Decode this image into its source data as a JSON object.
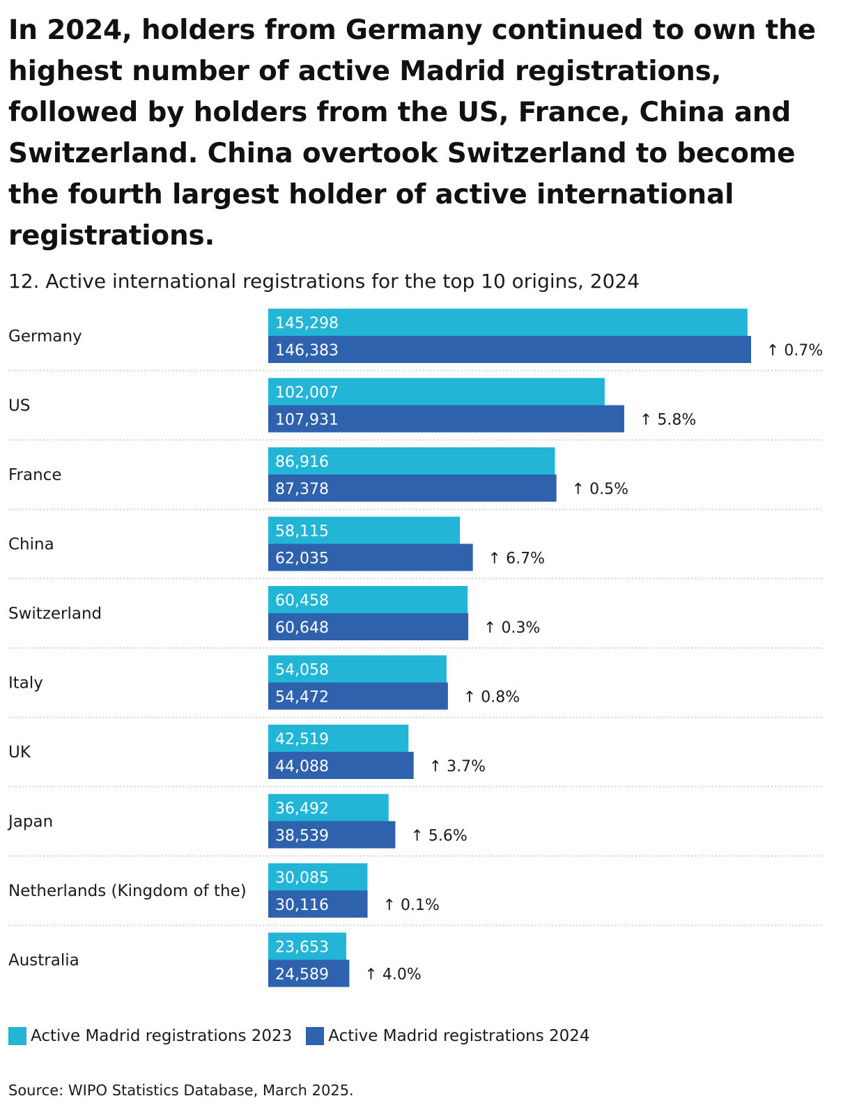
{
  "headline": "In 2024, holders from Germany continued to own the highest number of active Madrid registrations, followed by holders from the US, France, China and Switzerland. China overtook Switzerland to become the fourth largest holder of active international registrations.",
  "source": "Source: WIPO Statistics Database, March 2025.",
  "colors": {
    "series_2023": "#23b5d6",
    "series_2024": "#2f62ad",
    "divider": "#c8c8c8"
  },
  "chart_data": {
    "type": "bar",
    "orientation": "horizontal",
    "title": "12. Active international registrations for the top 10 origins, 2024",
    "xlabel": "",
    "ylabel": "",
    "xlim": [
      0,
      146383
    ],
    "grid": false,
    "legend_position": "bottom-left",
    "categories": [
      "Germany",
      "US",
      "France",
      "China",
      "Switzerland",
      "Italy",
      "UK",
      "Japan",
      "Netherlands (Kingdom of the)",
      "Australia"
    ],
    "series": [
      {
        "name": "Active Madrid registrations 2023",
        "values": [
          145298,
          102007,
          86916,
          58115,
          60458,
          54058,
          42519,
          36492,
          30085,
          23653
        ],
        "labels": [
          "145,298",
          "102,007",
          "86,916",
          "58,115",
          "60,458",
          "54,058",
          "42,519",
          "36,492",
          "30,085",
          "23,653"
        ]
      },
      {
        "name": "Active Madrid registrations 2024",
        "values": [
          146383,
          107931,
          87378,
          62035,
          60648,
          54472,
          44088,
          38539,
          30116,
          24589
        ],
        "labels": [
          "146,383",
          "107,931",
          "87,378",
          "62,035",
          "60,648",
          "54,472",
          "44,088",
          "38,539",
          "30,116",
          "24,589"
        ]
      }
    ],
    "changes": [
      "↑ 0.7%",
      "↑ 5.8%",
      "↑ 0.5%",
      "↑ 6.7%",
      "↑ 0.3%",
      "↑ 0.8%",
      "↑ 3.7%",
      "↑ 5.6%",
      "↑ 0.1%",
      "↑ 4.0%"
    ]
  }
}
